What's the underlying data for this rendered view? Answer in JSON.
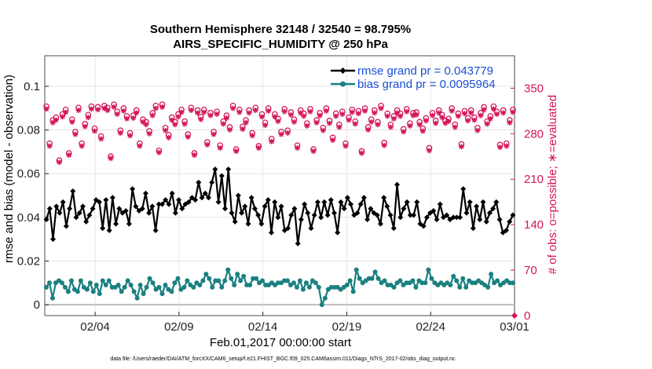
{
  "colors": {
    "rmse": "#000000",
    "bias": "#1a8080",
    "obs": "#d4145a",
    "legend_text": "#1a4fd6",
    "grid": "#e0e0e0",
    "zero_line": "#bdbdbd"
  },
  "chart_data": {
    "type": "line",
    "title": "Southern Hemisphere 32148 / 32540 = 98.795%",
    "subtitle": "AIRS_SPECIFIC_HUMIDITY @ 250 hPa",
    "xlabel": "Feb.01,2017 00:00:00 start",
    "ylabel": "rmse and bias (model - observation)",
    "ylabel_right": "# of obs: o=possible; ∗=evaluated",
    "footer": "data file: /Users/raeder/DAI/ATM_forcXX/CAM6_setup/f.e21.FHIST_BGC.f09_025.CAM6assim.011/Diags_NTrS_2017-02/obs_diag_output.nc",
    "x_range": [
      1,
      29
    ],
    "ylim": [
      -0.005,
      0.114
    ],
    "ylim_right": [
      0,
      400
    ],
    "xticks": [
      {
        "value": 4,
        "label": "02/04"
      },
      {
        "value": 9,
        "label": "02/09"
      },
      {
        "value": 14,
        "label": "02/14"
      },
      {
        "value": 19,
        "label": "02/19"
      },
      {
        "value": 24,
        "label": "02/24"
      },
      {
        "value": 29,
        "label": "03/01"
      }
    ],
    "yticks_left": [
      {
        "value": 0,
        "label": "0"
      },
      {
        "value": 0.02,
        "label": "0.02"
      },
      {
        "value": 0.04,
        "label": "0.04"
      },
      {
        "value": 0.06,
        "label": "0.06"
      },
      {
        "value": 0.08,
        "label": "0.08"
      },
      {
        "value": 0.1,
        "label": "0.1"
      }
    ],
    "yticks_right": [
      {
        "value": 0,
        "label": "0"
      },
      {
        "value": 70,
        "label": "70"
      },
      {
        "value": 140,
        "label": "140"
      },
      {
        "value": 210,
        "label": "210"
      },
      {
        "value": 280,
        "label": "280"
      },
      {
        "value": 350,
        "label": "350"
      }
    ],
    "legend": {
      "placement": "top-right",
      "entries": [
        {
          "series": "rmse",
          "label": "rmse grand pr = 0.043779"
        },
        {
          "series": "bias",
          "label": "bias grand pr = 0.0095964"
        }
      ]
    },
    "series": [
      {
        "name": "rmse",
        "axis": "left",
        "style": "line-diamond",
        "values": [
          0.039,
          0.044,
          0.03,
          0.045,
          0.042,
          0.047,
          0.036,
          0.044,
          0.052,
          0.04,
          0.042,
          0.045,
          0.038,
          0.041,
          0.044,
          0.048,
          0.047,
          0.035,
          0.048,
          0.034,
          0.049,
          0.037,
          0.044,
          0.042,
          0.043,
          0.037,
          0.053,
          0.045,
          0.043,
          0.044,
          0.051,
          0.042,
          0.045,
          0.034,
          0.046,
          0.046,
          0.048,
          0.046,
          0.051,
          0.042,
          0.048,
          0.044,
          0.046,
          0.047,
          0.049,
          0.048,
          0.056,
          0.049,
          0.051,
          0.049,
          0.056,
          0.062,
          0.047,
          0.059,
          0.044,
          0.062,
          0.042,
          0.038,
          0.05,
          0.042,
          0.045,
          0.037,
          0.049,
          0.044,
          0.041,
          0.037,
          0.045,
          0.048,
          0.033,
          0.047,
          0.04,
          0.045,
          0.034,
          0.035,
          0.041,
          0.044,
          0.028,
          0.039,
          0.046,
          0.042,
          0.035,
          0.041,
          0.047,
          0.04,
          0.047,
          0.041,
          0.048,
          0.042,
          0.033,
          0.047,
          0.044,
          0.049,
          0.046,
          0.041,
          0.042,
          0.046,
          0.049,
          0.039,
          0.044,
          0.042,
          0.041,
          0.037,
          0.049,
          0.045,
          0.041,
          0.035,
          0.055,
          0.04,
          0.044,
          0.047,
          0.041,
          0.041,
          0.047,
          0.037,
          0.036,
          0.04,
          0.042,
          0.043,
          0.039,
          0.046,
          0.04,
          0.041,
          0.039,
          0.04,
          0.04,
          0.04,
          0.053,
          0.042,
          0.047,
          0.035,
          0.045,
          0.039,
          0.047,
          0.038,
          0.042,
          0.044,
          0.047,
          0.039,
          0.033,
          0.034,
          0.038,
          0.041
        ]
      },
      {
        "name": "bias",
        "axis": "left",
        "style": "line-circle",
        "values": [
          0.008,
          0.01,
          0.003,
          0.01,
          0.011,
          0.01,
          0.008,
          0.006,
          0.011,
          0.007,
          0.006,
          0.011,
          0.008,
          0.007,
          0.01,
          0.006,
          0.009,
          0.005,
          0.011,
          0.009,
          0.011,
          0.008,
          0.008,
          0.009,
          0.006,
          0.008,
          0.011,
          0.009,
          0.006,
          0.003,
          0.009,
          0.005,
          0.008,
          0.012,
          0.01,
          0.007,
          0.008,
          0.005,
          0.009,
          0.007,
          0.006,
          0.01,
          0.012,
          0.007,
          0.008,
          0.011,
          0.009,
          0.008,
          0.01,
          0.009,
          0.011,
          0.014,
          0.012,
          0.008,
          0.011,
          0.011,
          0.008,
          0.011,
          0.016,
          0.012,
          0.009,
          0.014,
          0.011,
          0.013,
          0.009,
          0.009,
          0.012,
          0.012,
          0.01,
          0.011,
          0.009,
          0.009,
          0.01,
          0.009,
          0.01,
          0.01,
          0.011,
          0.011,
          0.009,
          0.01,
          0.008,
          0.011,
          0.007,
          0.01,
          0.008,
          0.011,
          0.01,
          0.008,
          0.0,
          0.003,
          0.007,
          0.008,
          0.008,
          0.008,
          0.007,
          0.008,
          0.009,
          0.011,
          0.006,
          0.016,
          0.012,
          0.01,
          0.011,
          0.012,
          0.012,
          0.015,
          0.012,
          0.01,
          0.011,
          0.009,
          0.009,
          0.008,
          0.01,
          0.011,
          0.009,
          0.01,
          0.01,
          0.011,
          0.008,
          0.011,
          0.01,
          0.01,
          0.016,
          0.012,
          0.01,
          0.009,
          0.01,
          0.009,
          0.01,
          0.009,
          0.013,
          0.011,
          0.008,
          0.012,
          0.008,
          0.011,
          0.01,
          0.01,
          0.011,
          0.01,
          0.009,
          0.008,
          0.014,
          0.01,
          0.011,
          0.009,
          0.01,
          0.011,
          0.01,
          0.01
        ]
      },
      {
        "name": "obs_possible",
        "axis": "right",
        "style": "circle-marker",
        "values": [
          322,
          265,
          301,
          305,
          239,
          310,
          317,
          250,
          302,
          283,
          320,
          265,
          295,
          309,
          322,
          288,
          321,
          276,
          323,
          320,
          245,
          325,
          314,
          285,
          319,
          307,
          281,
          308,
          316,
          265,
          302,
          298,
          284,
          312,
          323,
          254,
          325,
          289,
          278,
          305,
          298,
          310,
          317,
          299,
          279,
          320,
          250,
          316,
          306,
          317,
          267,
          312,
          283,
          314,
          262,
          299,
          308,
          290,
          323,
          256,
          317,
          291,
          301,
          316,
          281,
          320,
          261,
          310,
          297,
          319,
          272,
          310,
          303,
          283,
          318,
          285,
          313,
          302,
          262,
          316,
          311,
          296,
          318,
          256,
          301,
          312,
          289,
          319,
          300,
          274,
          311,
          294,
          314,
          265,
          305,
          317,
          299,
          315,
          253,
          319,
          290,
          302,
          316,
          298,
          323,
          266,
          311,
          294,
          307,
          316,
          311,
          287,
          318,
          296,
          312,
          313,
          298,
          288,
          304,
          258,
          312,
          300,
          316,
          309,
          300,
          303,
          319,
          294,
          311,
          264,
          315,
          304,
          316,
          305,
          289,
          312,
          321,
          299,
          307,
          322,
          314,
          263,
          316,
          265,
          301,
          317
        ]
      },
      {
        "name": "obs_evaluated",
        "axis": "right",
        "style": "asterisk-marker",
        "values": [
          318,
          261,
          297,
          301,
          236,
          306,
          313,
          247,
          298,
          279,
          316,
          261,
          291,
          305,
          318,
          284,
          317,
          272,
          319,
          316,
          242,
          321,
          310,
          281,
          315,
          303,
          277,
          304,
          312,
          261,
          298,
          294,
          280,
          308,
          319,
          251,
          321,
          285,
          274,
          301,
          294,
          306,
          313,
          295,
          275,
          316,
          247,
          312,
          302,
          313,
          263,
          308,
          279,
          310,
          258,
          295,
          304,
          286,
          319,
          253,
          313,
          287,
          297,
          312,
          277,
          316,
          258,
          306,
          293,
          315,
          268,
          306,
          299,
          279,
          314,
          281,
          309,
          298,
          258,
          312,
          307,
          292,
          314,
          253,
          297,
          308,
          285,
          315,
          296,
          270,
          307,
          290,
          310,
          261,
          301,
          313,
          295,
          311,
          250,
          315,
          286,
          298,
          312,
          294,
          319,
          262,
          307,
          290,
          303,
          312,
          307,
          283,
          314,
          292,
          308,
          309,
          294,
          284,
          300,
          254,
          308,
          296,
          312,
          305,
          296,
          299,
          315,
          290,
          307,
          260,
          311,
          300,
          312,
          301,
          285,
          308,
          317,
          295,
          303,
          318,
          310,
          259,
          312,
          261,
          297,
          313
        ]
      }
    ]
  }
}
